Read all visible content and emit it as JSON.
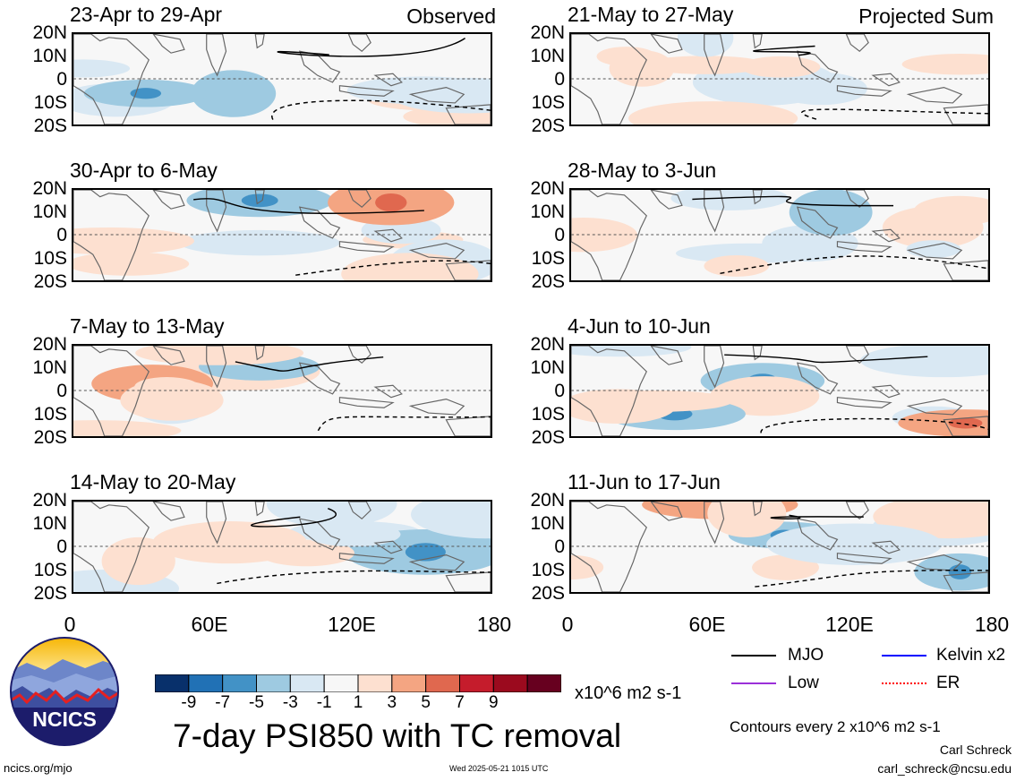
{
  "panels": [
    {
      "title": "23-Apr to 29-Apr",
      "tag": "Observed"
    },
    {
      "title": "21-May to 27-May",
      "tag": "Projected Sum"
    },
    {
      "title": "30-Apr to 6-May",
      "tag": ""
    },
    {
      "title": "28-May to 3-Jun",
      "tag": ""
    },
    {
      "title": "7-May to 13-May",
      "tag": ""
    },
    {
      "title": "4-Jun to 10-Jun",
      "tag": ""
    },
    {
      "title": "14-May to 20-May",
      "tag": ""
    },
    {
      "title": "11-Jun to 17-Jun",
      "tag": ""
    }
  ],
  "lat_labels": [
    "20N",
    "10N",
    "0",
    "10S",
    "20S"
  ],
  "lon_labels": [
    "0",
    "60E",
    "120E",
    "180"
  ],
  "colorbar": {
    "colors": [
      "#08306b",
      "#2171b5",
      "#4292c6",
      "#9ecae1",
      "#d9e8f3",
      "#f7f7f7",
      "#fde0d0",
      "#f4a582",
      "#e0684f",
      "#c51c2c",
      "#9b0a1e",
      "#67001f"
    ],
    "ticks": [
      "-9",
      "-7",
      "-5",
      "-3",
      "-1",
      "1",
      "3",
      "5",
      "7",
      "9"
    ],
    "units": "x10^6 m2 s-1"
  },
  "title": "7-day PSI850 with TC removal",
  "legend": {
    "mjo": "MJO",
    "kelvin": "Kelvin x2",
    "low": "Low",
    "er": "ER",
    "colors": {
      "mjo": "#000000",
      "kelvin": "#0000ff",
      "low": "#9b30d9",
      "er": "#ff0000"
    }
  },
  "contour_note": "Contours every 2 x10^6 m2 s-1",
  "credits": {
    "author": "Carl Schreck",
    "email": "carl_schreck@ncsu.edu"
  },
  "footer": {
    "url": "ncics.org/mjo",
    "timestamp": "Wed 2025-05-21 1015 UTC"
  },
  "logo_text": "NCICS"
}
